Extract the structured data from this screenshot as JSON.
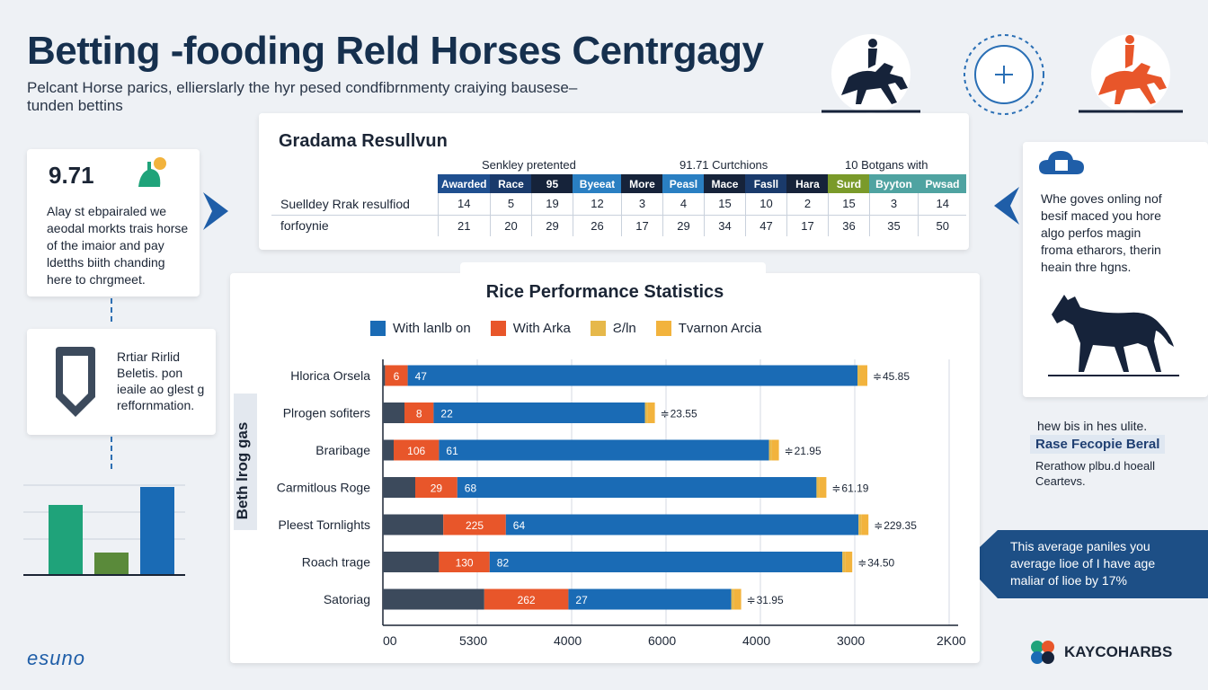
{
  "header": {
    "title": "Betting -fooding Reld Horses Centrgagy",
    "subtitle": "Pelcant Horse parics, ellierslarly the hyr pesed condfibrnmenty craiying bausese–tunden bettins"
  },
  "results_table": {
    "title": "Gradama Resullvun",
    "group_labels": [
      "Senkley pretented",
      "91.71 Curtchions",
      "10 Botgans with"
    ],
    "columns": [
      {
        "label": "Awarded",
        "color": "#1f4f8f"
      },
      {
        "label": "Race",
        "color": "#1a3a6b"
      },
      {
        "label": "95",
        "color": "#16233a"
      },
      {
        "label": "Byeeat",
        "color": "#2a7fc2"
      },
      {
        "label": "More",
        "color": "#16233a"
      },
      {
        "label": "Peasl",
        "color": "#2a7fc2"
      },
      {
        "label": "Mace",
        "color": "#16233a"
      },
      {
        "label": "Fasll",
        "color": "#1a3a6b"
      },
      {
        "label": "Hara",
        "color": "#16233a"
      },
      {
        "label": "Surd",
        "color": "#7a9a2a"
      },
      {
        "label": "Byyton",
        "color": "#4fa3a1"
      },
      {
        "label": "Pwsad",
        "color": "#4fa3a1"
      }
    ],
    "rows": [
      {
        "label": "Suelldey Rrak resulfiod",
        "values": [
          "14",
          "5",
          "19",
          "12",
          "3",
          "4",
          "15",
          "10",
          "2",
          "15",
          "3",
          "14"
        ]
      },
      {
        "label": "forfoynie",
        "values": [
          "21",
          "20",
          "29",
          "26",
          "17",
          "29",
          "34",
          "47",
          "17",
          "36",
          "35",
          "50"
        ]
      }
    ]
  },
  "stat_card": {
    "value": "9.71",
    "text": "Alay st ebpairaled we aeodal morkts trais horse of the imaior and pay ldetths biith chanding here to chrgmeet."
  },
  "tip_card": {
    "text": "Rrtiar Rirlid Beletis. pon ieaile ao glest g reffornmation."
  },
  "right_card": {
    "text": "Whe goves onling nof besif maced you hore algo perfos magin froma etharors, therin heain thre hgns."
  },
  "note": {
    "top": "hew bis in hes ulite.",
    "title": "Rase Fecopie Beral",
    "body": "Rerathow plbu.d hoeall Ceartevs."
  },
  "callout": {
    "text": "This average paniles you average lioe of I have age maliar of lioe by 17%"
  },
  "footer": {
    "left_logo": "esuno",
    "right_logo": "KAYCOHARBS"
  },
  "colors": {
    "navy": "#16304e",
    "blue": "#1a6bb5",
    "orange": "#e8562a",
    "yellow": "#f2b33d",
    "dark_segment": "#3c4a5c",
    "callout_bg": "#1d4f86",
    "green": "#1fa37a"
  },
  "icons": [
    "horse-rider-icon",
    "crosshair-icon",
    "horse-rider-orange-icon",
    "shield-icon",
    "cloud-icon",
    "horse-silhouette-icon",
    "bar-chart-icon",
    "plant-icon",
    "chevron-right-icon",
    "chevron-left-icon"
  ],
  "chart_data": {
    "type": "bar",
    "orientation": "horizontal",
    "stacked": true,
    "title": "Rice Performance Statistics",
    "ylabel": "Beth lrog gas",
    "legend": [
      "With lanlb on",
      "With Arka",
      "Ƨ/ln",
      "Tvarnon Arcia"
    ],
    "legend_colors": [
      "#1a6bb5",
      "#e8562a",
      "#e6b84a",
      "#f2b33d"
    ],
    "x_tick_labels": [
      "00",
      "5300",
      "4000",
      "6000",
      "4000",
      "3000",
      "2K00"
    ],
    "categories": [
      "Hlorica Orsela",
      "Plrogen sofiters",
      "Braribage",
      "Carmitlous Roge",
      "Pleest Tornlights",
      "Roach trage",
      "Satoriag"
    ],
    "segments": [
      {
        "dark": 0.2,
        "orange": 2.1,
        "orange_label": "6",
        "blue": 41.7,
        "blue_label": "47",
        "end_label": "45.85"
      },
      {
        "dark": 2.0,
        "orange": 2.7,
        "orange_label": "8",
        "blue": 19.6,
        "blue_label": "22",
        "end_label": "23.55"
      },
      {
        "dark": 1.0,
        "orange": 4.2,
        "orange_label": "106",
        "blue": 30.6,
        "blue_label": "61",
        "end_label": "21.95"
      },
      {
        "dark": 3.0,
        "orange": 3.9,
        "orange_label": "29",
        "blue": 33.3,
        "blue_label": "68",
        "end_label": "61.19"
      },
      {
        "dark": 5.6,
        "orange": 5.8,
        "orange_label": "225",
        "blue": 32.7,
        "blue_label": "64",
        "end_label": "229.35"
      },
      {
        "dark": 5.2,
        "orange": 4.7,
        "orange_label": "130",
        "blue": 32.7,
        "blue_label": "82",
        "end_label": "34.50"
      },
      {
        "dark": 9.4,
        "orange": 7.8,
        "orange_label": "262",
        "blue": 15.1,
        "blue_label": "27",
        "end_label": "31.95"
      }
    ],
    "xlim": [
      0,
      52.5
    ],
    "grid": "vertical"
  }
}
